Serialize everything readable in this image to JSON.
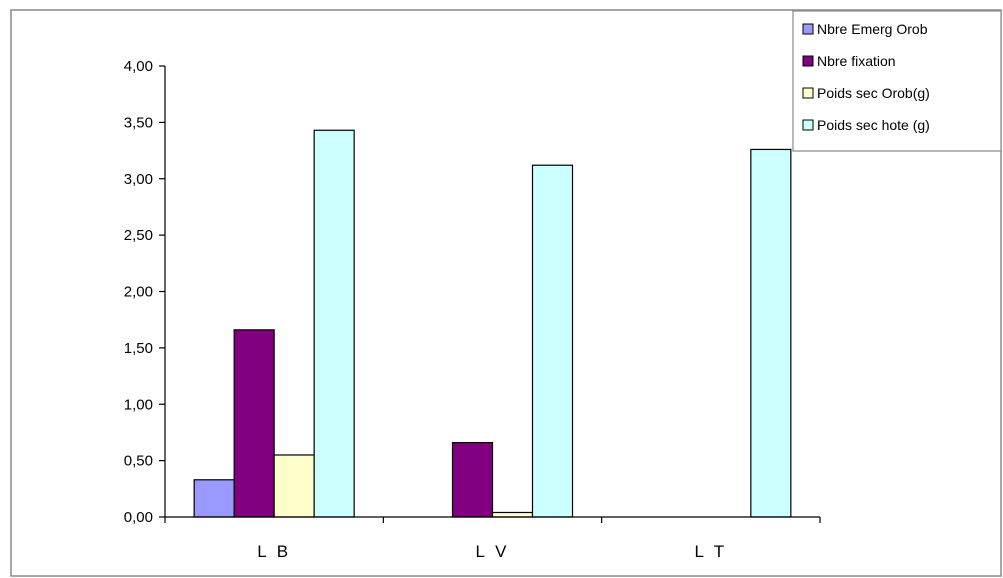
{
  "chart_data": {
    "type": "bar",
    "title": "",
    "xlabel": "",
    "ylabel": "",
    "categories": [
      "L B",
      "L V",
      "L T"
    ],
    "ylim": [
      0,
      4
    ],
    "yticks": [
      0,
      0.5,
      1,
      1.5,
      2,
      2.5,
      3,
      3.5,
      4
    ],
    "ytick_labels": [
      "0,00",
      "0,50",
      "1,00",
      "1,50",
      "2,00",
      "2,50",
      "3,00",
      "3,50",
      "4,00"
    ],
    "grid": false,
    "legend_position": "top-right",
    "series": [
      {
        "name": "Nbre Emerg Orob",
        "color": "#9999ff",
        "values": [
          0.33,
          0,
          0
        ]
      },
      {
        "name": "Nbre fixation",
        "color": "#800080",
        "values": [
          1.66,
          0.66,
          0
        ]
      },
      {
        "name": "Poids sec Orob(g)",
        "color": "#ffffcc",
        "values": [
          0.55,
          0.04,
          0
        ]
      },
      {
        "name": "Poids sec hote (g)",
        "color": "#ccffff",
        "values": [
          3.43,
          3.12,
          3.26
        ]
      }
    ]
  }
}
